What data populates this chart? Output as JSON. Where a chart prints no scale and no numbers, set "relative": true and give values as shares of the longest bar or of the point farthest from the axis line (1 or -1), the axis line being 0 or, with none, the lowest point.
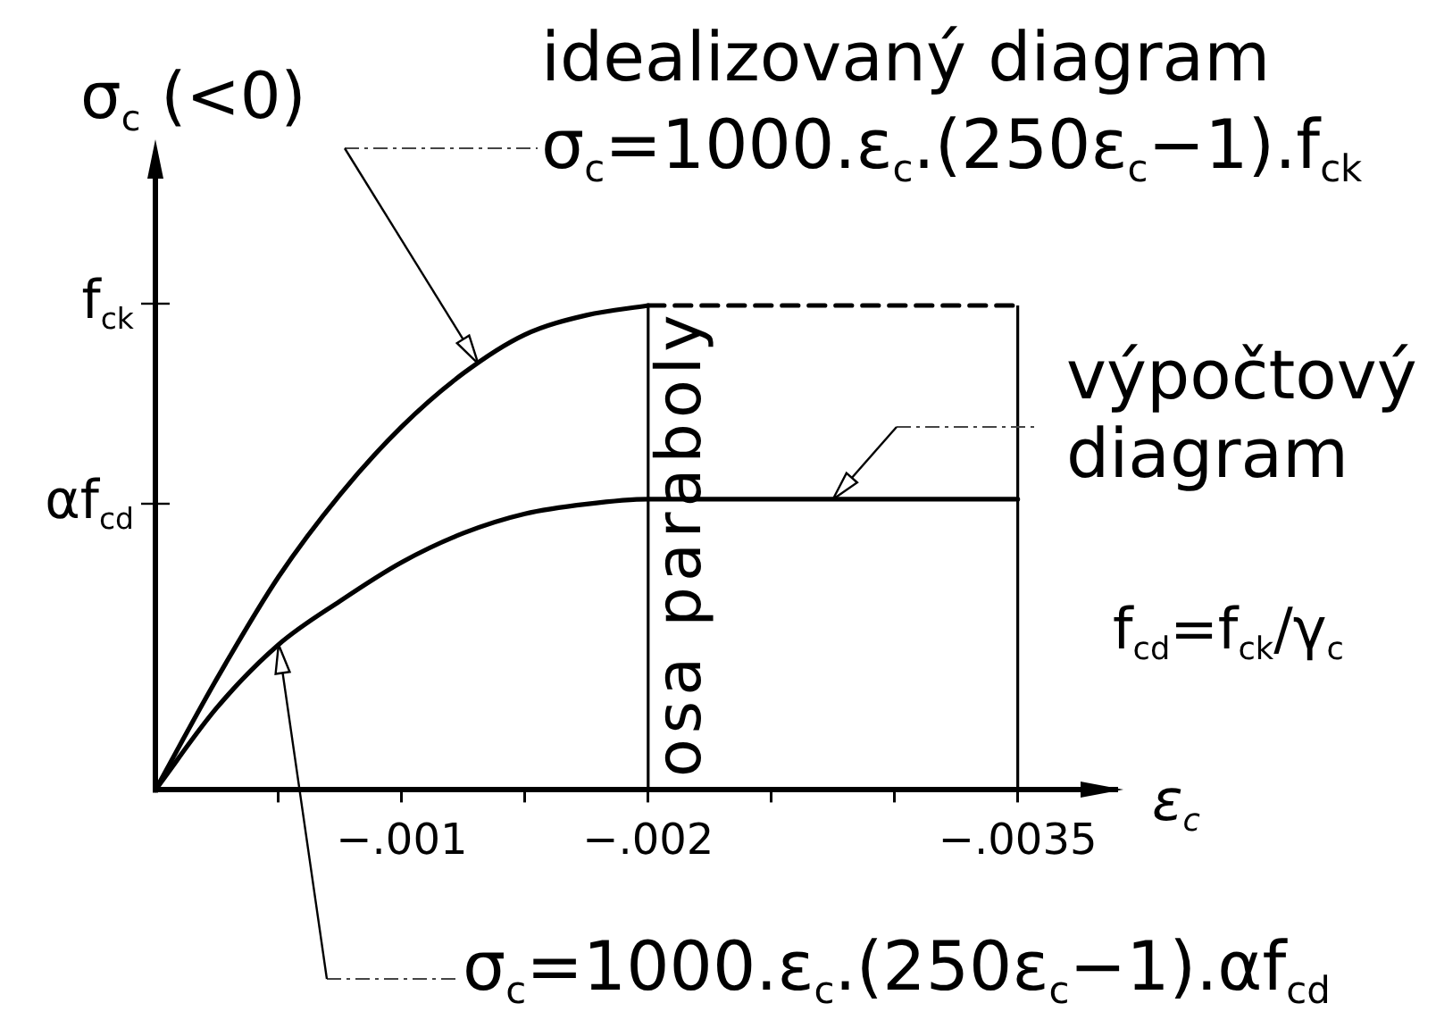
{
  "chart_data": {
    "type": "line",
    "relative": true,
    "xlabel": "ε$_{c}$",
    "ylabel": "σ$_{c}$ (<0)",
    "xlim": [
      0,
      -0.0039
    ],
    "xticks": [
      {
        "value": -0.0005,
        "label": null
      },
      {
        "value": -0.001,
        "label": "−.001"
      },
      {
        "value": -0.0015,
        "label": null
      },
      {
        "value": -0.002,
        "label": "−.002"
      },
      {
        "value": -0.0025,
        "label": null
      },
      {
        "value": -0.003,
        "label": null
      },
      {
        "value": -0.0035,
        "label": "−.0035"
      }
    ],
    "series": [
      {
        "color": "#000000",
        "x": [
          0,
          -0.00025,
          -0.0005,
          -0.00075,
          -0.001,
          -0.00125,
          -0.0015,
          -0.00175,
          -0.002
        ],
        "values": [
          0,
          0.23,
          0.44,
          0.61,
          0.75,
          0.86,
          0.94,
          0.98,
          1
        ]
      },
      {
        "name": "výpočtový diagram",
        "color": "#000000",
        "x": [
          0,
          -0.00025,
          -0.0005,
          -0.00075,
          -0.001,
          -0.00125,
          -0.0015,
          -0.00175,
          -0.002,
          -0.0035
        ],
        "values": [
          0,
          0.17,
          0.3,
          0.39,
          0.47,
          0.53,
          0.57,
          0.59,
          0.6,
          0.6
        ]
      },
      {
        "color": "#000000",
        "line_style": "dashed",
        "x": [
          -0.002,
          -0.0035
        ],
        "values": [
          1,
          1
        ]
      }
    ],
    "ref_lines": [
      {
        "axis": "x",
        "value": -0.002,
        "label": "osa paraboly"
      },
      {
        "axis": "x",
        "value": -0.0035
      }
    ],
    "annotations": [
      "f$_{ck}$",
      "αf$_{cd}$",
      "idealizovaný diagram",
      {
        "text": "σ$_{c}$=1000.ε$_{c}$.(250ε$_{c}$−1).f$_{ck}$",
        "x": -0.00131,
        "y": 0.88
      },
      "f$_{cd}$=f$_{ck}$/γ$_{c}$",
      "σ$_{c}$=1000.ε$_{c}$.(250ε$_{c}$−1).αf$_{cd}$"
    ],
    "legend": false,
    "grid": false
  }
}
